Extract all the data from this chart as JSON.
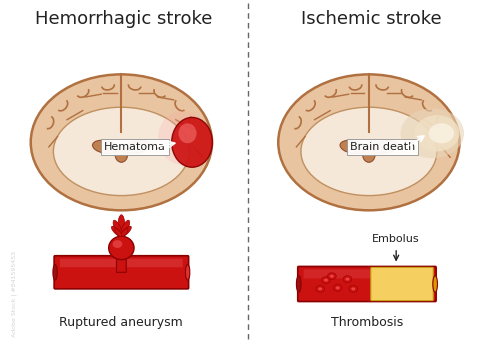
{
  "title_left": "Hemorrhagic stroke",
  "title_right": "Ischemic stroke",
  "label_hematoma": "Hematoma",
  "label_brain_death": "Brain death",
  "label_ruptured": "Ruptured aneurysm",
  "label_thrombosis": "Thrombosis",
  "label_embolus": "Embolus",
  "bg_color": "#ffffff",
  "brain_outer_fill": "#e8c4a0",
  "brain_outer_edge": "#b07040",
  "brain_inner_fill": "#f5e8d8",
  "brain_inner_edge": "#c09060",
  "ventricle_fill": "#c08050",
  "ventricle_edge": "#905030",
  "corpus_color": "#b07040",
  "hematoma_red": "#cc1111",
  "hematoma_light": "#ff8888",
  "brain_death_fill": "#e8d0b0",
  "brain_death_center": "#f5ede0",
  "vessel_red": "#cc1111",
  "vessel_dark": "#8b0000",
  "vessel_highlight": "#dd4444",
  "vessel_end_dark": "#991111",
  "plaque_fill": "#f5d060",
  "plaque_edge": "#c8a010",
  "blood_cell_fill": "#cc1111",
  "blood_cell_edge": "#990000",
  "text_color": "#222222",
  "divider_color": "#666666",
  "title_fontsize": 13,
  "label_fontsize": 8.5,
  "annot_fontsize": 8,
  "watermark_color": "#aaaaaa"
}
